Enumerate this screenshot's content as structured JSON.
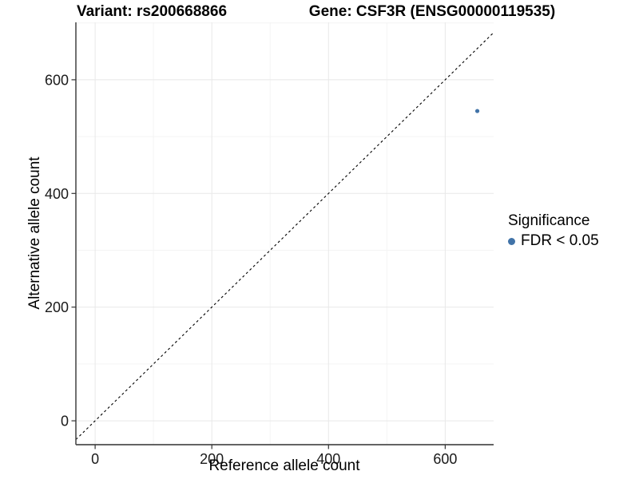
{
  "chart_data": {
    "type": "scatter",
    "titles": {
      "left": "Variant: rs200668866",
      "right": "Gene: CSF3R (ENSG00000119535)"
    },
    "xlabel": "Reference allele count",
    "ylabel": "Alternative allele count",
    "xlim": [
      -33,
      683
    ],
    "ylim": [
      -42,
      701
    ],
    "xticks": [
      0,
      200,
      400,
      600
    ],
    "yticks": [
      0,
      200,
      400,
      600
    ],
    "xminor": [
      100,
      300,
      500
    ],
    "yminor": [
      100,
      300,
      500,
      700
    ],
    "grid": true,
    "identity_line": {
      "equation": "y = x",
      "style": "dashed",
      "color": "#000000"
    },
    "series": [
      {
        "name": "FDR < 0.05",
        "color": "#4173a8",
        "points": [
          [
            655,
            545
          ]
        ],
        "point_radius": 2.6
      }
    ],
    "legend": {
      "title": "Significance",
      "position": "right",
      "items": [
        {
          "label": "FDR < 0.05",
          "color": "#4173a8"
        }
      ]
    },
    "style_colors": {
      "axis_line": "#4d4d4d",
      "tick_mark": "#333333",
      "tick_label": "#1a1a1a",
      "grid_major": "#e8e8e8",
      "grid_minor": "#f4f4f4"
    }
  }
}
